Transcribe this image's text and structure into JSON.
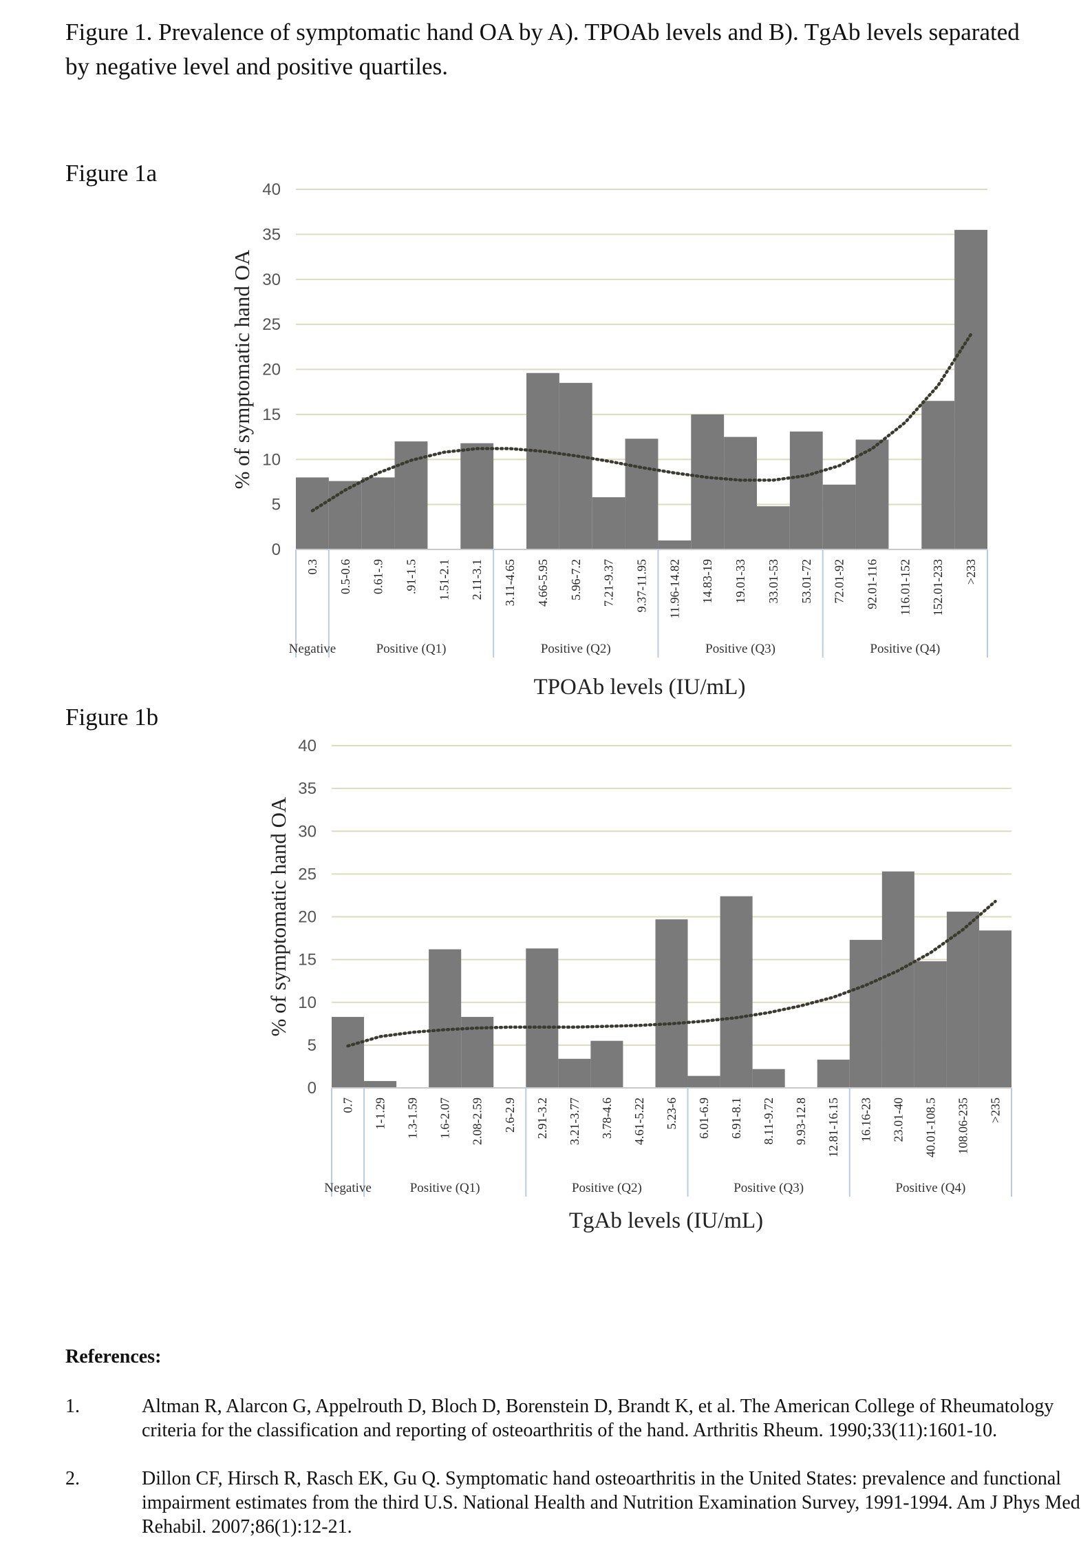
{
  "caption": "Figure 1. Prevalence of symptomatic hand OA by A). TPOAb levels and B). TgAb levels separated by negative level and positive quartiles.",
  "figure_labels": [
    "Figure 1a",
    "Figure 1b"
  ],
  "chart_data": [
    {
      "type": "bar",
      "ylabel": "% of symptomatic hand OA",
      "xlabel": "TPOAb levels (IU/mL)",
      "ylim": [
        0,
        40
      ],
      "yticks": [
        0,
        5,
        10,
        15,
        20,
        25,
        30,
        35,
        40
      ],
      "grid": true,
      "categories": [
        "0.3",
        "0.5-0.6",
        "0.61-.9",
        ".91-1.5",
        "1.51-2.1",
        "2.11-3.1",
        "3.11-4.65",
        "4.66-5.95",
        "5.96-7.2",
        "7.21-9.37",
        "9.37-11.95",
        "11.96-14.82",
        "14.83-19",
        "19.01-33",
        "33.01-53",
        "53.01-72",
        "72.01-92",
        "92.01-116",
        "116.01-152",
        "152.01-233",
        ">233"
      ],
      "values": [
        8,
        7.6,
        8,
        12,
        0,
        11.8,
        0,
        19.6,
        18.5,
        5.8,
        12.3,
        1,
        15,
        12.5,
        4.8,
        13.1,
        7.2,
        12.2,
        0,
        16.5,
        35.5
      ],
      "groups": [
        {
          "label": "Negative",
          "start": 0,
          "end": 0
        },
        {
          "label": "Positive (Q1)",
          "start": 1,
          "end": 5
        },
        {
          "label": "Positive (Q2)",
          "start": 6,
          "end": 10
        },
        {
          "label": "Positive (Q3)",
          "start": 11,
          "end": 15
        },
        {
          "label": "Positive (Q4)",
          "start": 16,
          "end": 20
        }
      ],
      "trendline": [
        4.3,
        6.6,
        8.5,
        9.9,
        10.8,
        11.2,
        11.2,
        10.9,
        10.4,
        9.8,
        9.1,
        8.5,
        8.0,
        7.7,
        7.7,
        8.2,
        9.3,
        11.2,
        14.1,
        18.2,
        23.9
      ],
      "colors": {
        "bar": "#7a7a7a",
        "grid": "#dcdcbf",
        "trend": "#3a3a30",
        "separator": "#b8cde4"
      }
    },
    {
      "type": "bar",
      "ylabel": "% of symptomatic hand OA",
      "xlabel": "TgAb levels (IU/mL)",
      "ylim": [
        0,
        40
      ],
      "yticks": [
        0,
        5,
        10,
        15,
        20,
        25,
        30,
        35,
        40
      ],
      "grid": true,
      "categories": [
        "0.7",
        "1-1.29",
        "1.3-1.59",
        "1.6-2.07",
        "2.08-2.59",
        "2.6-2.9",
        "2.91-3.2",
        "3.21-3.77",
        "3.78-4.6",
        "4.61-5.22",
        "5.23-6",
        "6.01-6.9",
        "6.91-8.1",
        "8.11-9.72",
        "9.93-12.8",
        "12.81-16.15",
        "16.16-23",
        "23.01-40",
        "40.01-108.5",
        "108.06-235",
        ">235"
      ],
      "values": [
        8.3,
        0.8,
        0,
        16.2,
        8.3,
        0,
        16.3,
        3.4,
        5.5,
        0,
        19.7,
        1.4,
        22.4,
        2.2,
        0,
        3.3,
        17.3,
        25.3,
        14.8,
        20.6,
        18.4
      ],
      "groups": [
        {
          "label": "Negative",
          "start": 0,
          "end": 0
        },
        {
          "label": "Positive (Q1)",
          "start": 1,
          "end": 5
        },
        {
          "label": "Positive (Q2)",
          "start": 6,
          "end": 10
        },
        {
          "label": "Positive (Q3)",
          "start": 11,
          "end": 15
        },
        {
          "label": "Positive (Q4)",
          "start": 16,
          "end": 20
        }
      ],
      "trendline": [
        4.9,
        6.0,
        6.5,
        6.8,
        7.0,
        7.1,
        7.1,
        7.1,
        7.2,
        7.3,
        7.5,
        7.8,
        8.2,
        8.8,
        9.6,
        10.6,
        12.0,
        13.7,
        15.8,
        18.5,
        21.8
      ],
      "colors": {
        "bar": "#7a7a7a",
        "grid": "#dcdcbf",
        "trend": "#3a3a30",
        "separator": "#b8cde4"
      }
    }
  ],
  "references": {
    "heading": "References:",
    "items": [
      {
        "num": "1.",
        "text": "Altman R, Alarcon G, Appelrouth D, Bloch D, Borenstein D, Brandt K, et al. The American College of Rheumatology criteria for the classification and reporting of osteoarthritis of the hand. Arthritis Rheum. 1990;33(11):1601-10."
      },
      {
        "num": "2.",
        "text": "Dillon CF, Hirsch R, Rasch EK, Gu Q. Symptomatic hand osteoarthritis in the United States: prevalence and functional impairment estimates from the third U.S. National Health and Nutrition Examination Survey, 1991-1994. Am J Phys Med Rehabil. 2007;86(1):12-21."
      }
    ]
  }
}
